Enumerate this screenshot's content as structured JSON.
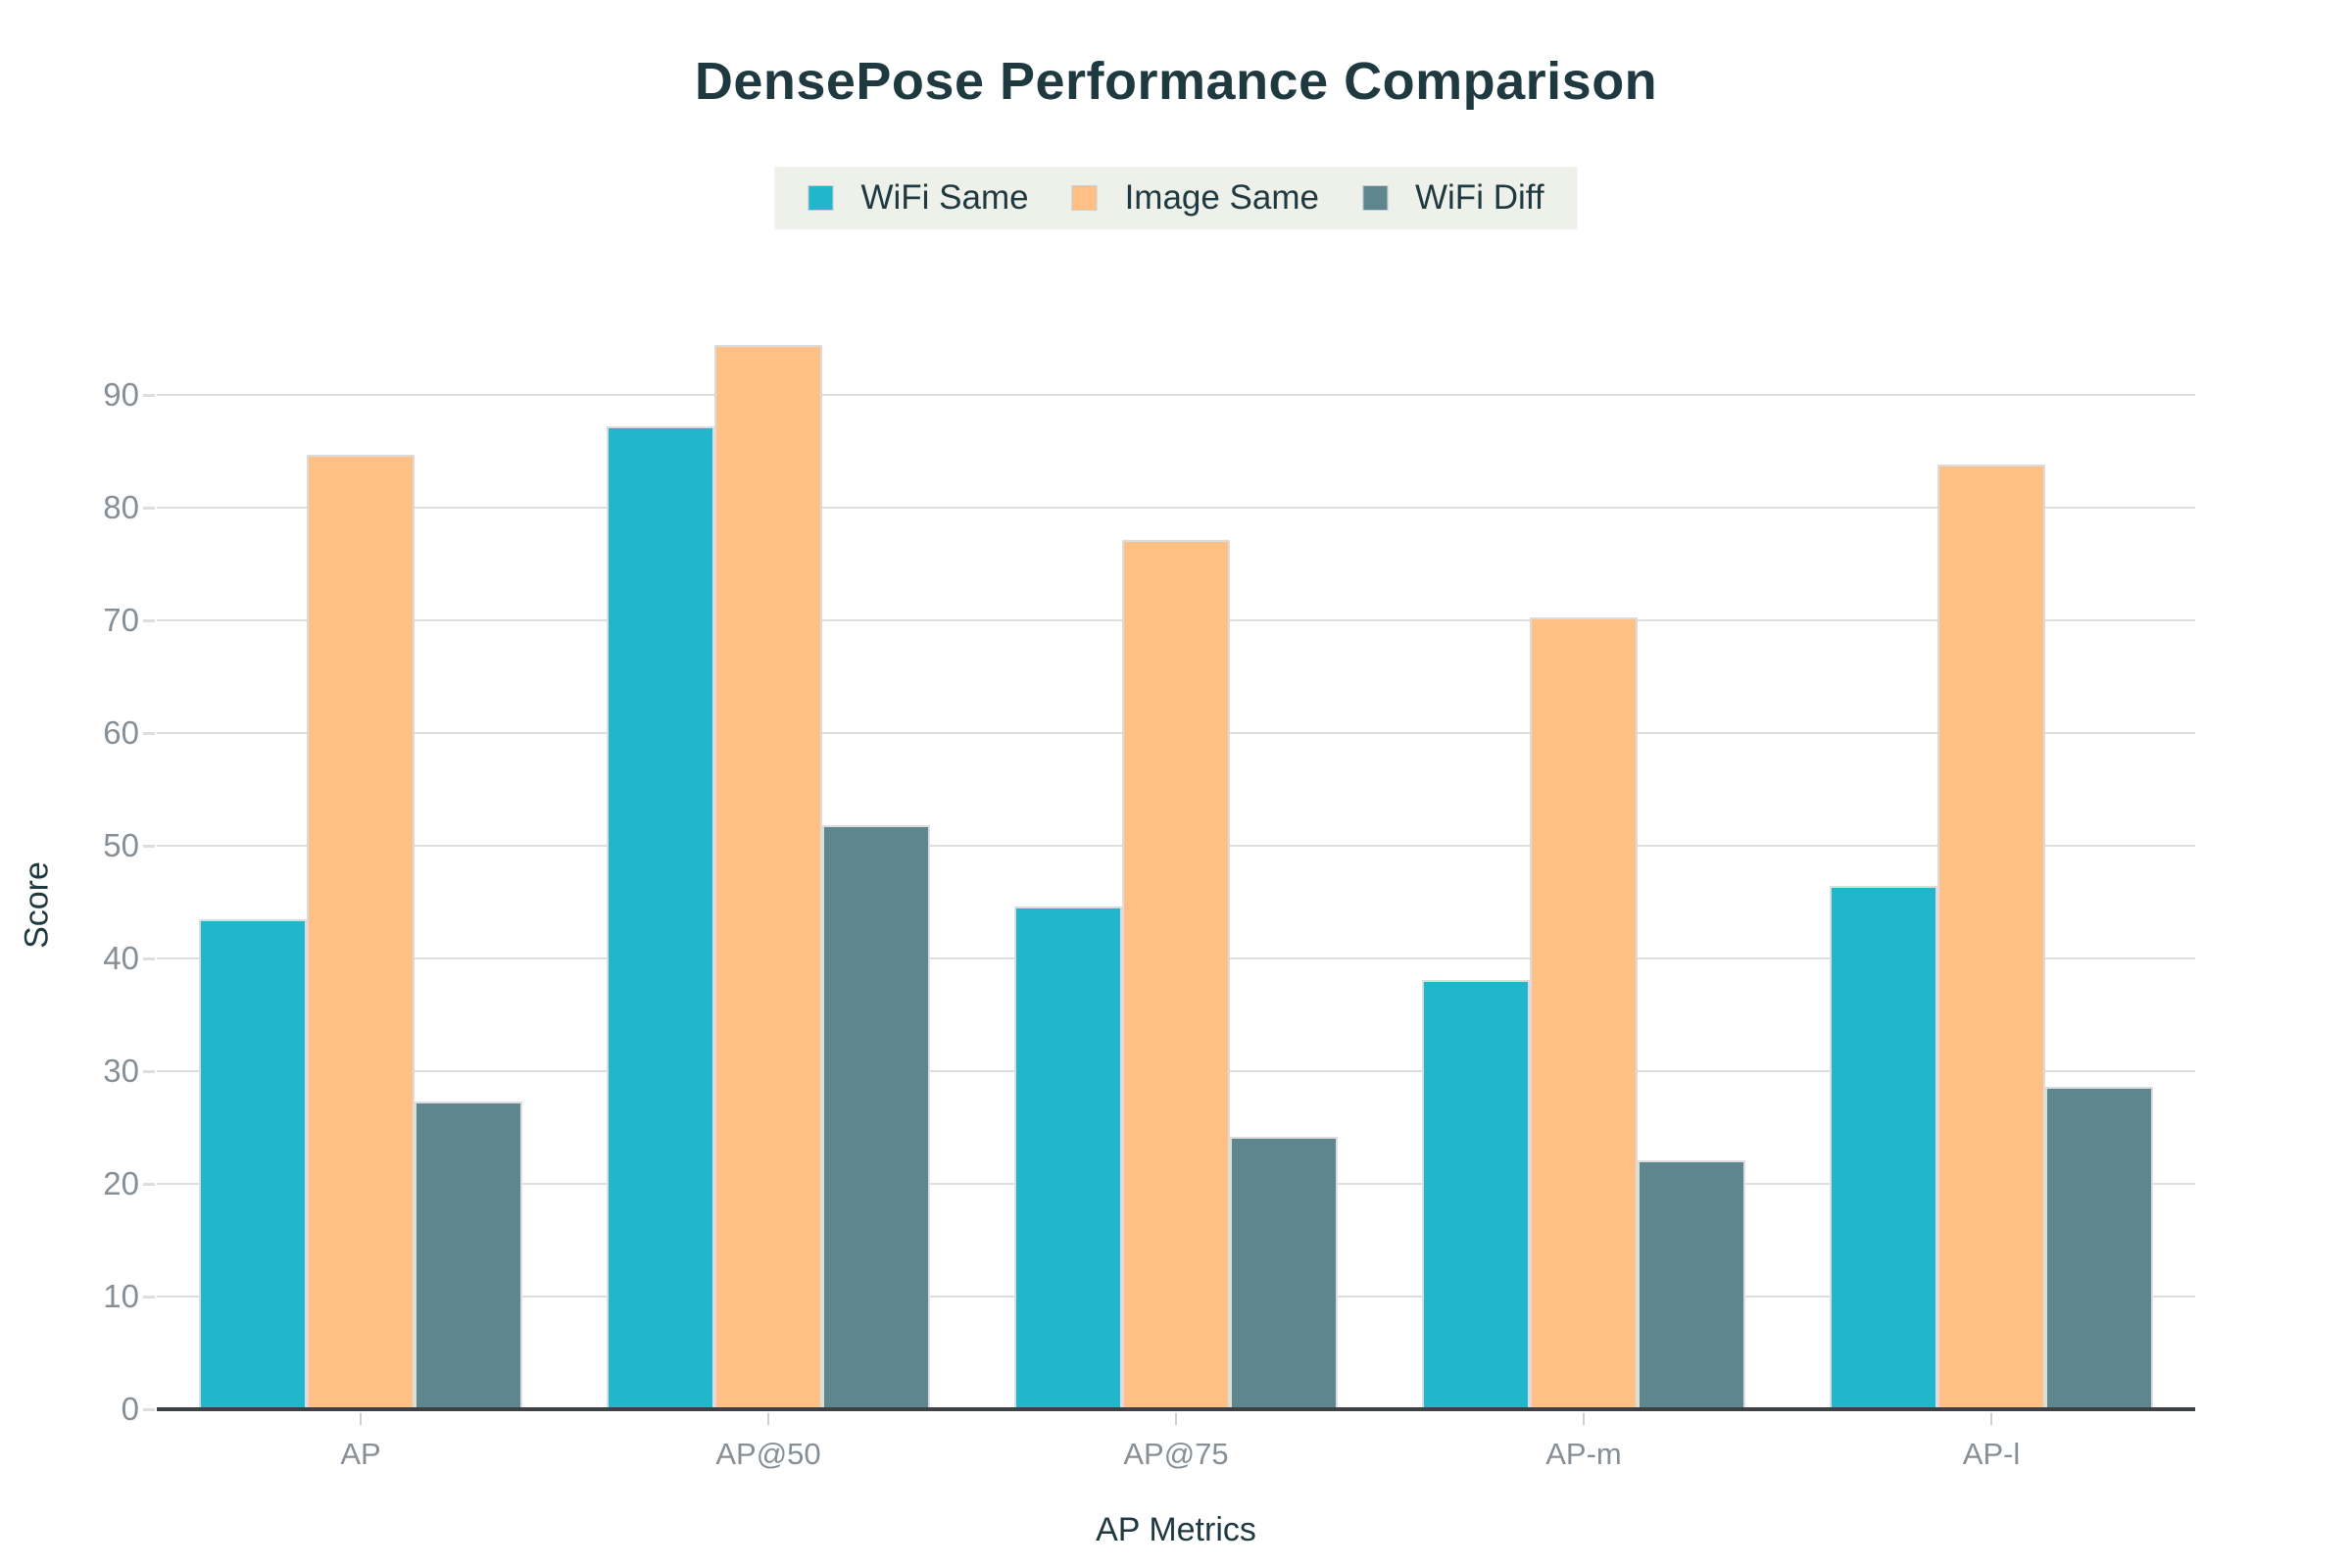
{
  "title": "DensePose Performance Comparison",
  "chart_data": {
    "type": "bar",
    "categories": [
      "AP",
      "AP@50",
      "AP@75",
      "AP-m",
      "AP-l"
    ],
    "series": [
      {
        "name": "WiFi Same",
        "color": "#22b6cd",
        "values": [
          43.5,
          87.2,
          44.6,
          38.1,
          46.4
        ]
      },
      {
        "name": "Image Same",
        "color": "#ffbf85",
        "values": [
          84.7,
          94.4,
          77.1,
          70.3,
          83.8
        ]
      },
      {
        "name": "WiFi Diff",
        "color": "#5d868e",
        "values": [
          27.3,
          51.8,
          24.2,
          22.1,
          28.6
        ]
      }
    ],
    "title": "DensePose Performance Comparison",
    "xlabel": "AP Metrics",
    "ylabel": "Score",
    "ylim": [
      0,
      96.5
    ],
    "yticks": [
      0,
      10,
      20,
      30,
      40,
      50,
      60,
      70,
      80,
      90
    ],
    "grid": true,
    "legend_position": "top-center"
  },
  "colors": {
    "heading_text": "#1e3a40",
    "tick_text": "#878f96",
    "gridline": "#dedede",
    "axis_line": "#3d4144",
    "legend_background": "#eef0ea",
    "bar_border": "#dcdcdc"
  }
}
